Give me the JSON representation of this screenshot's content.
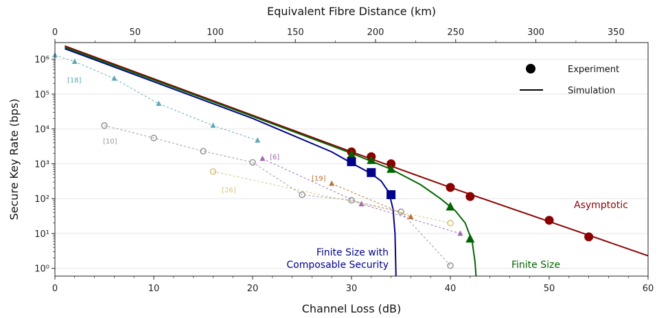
{
  "chart_data": {
    "type": "scatter",
    "xlabel": "Channel Loss (dB)",
    "ylabel": "Secure Key Rate (bps)",
    "x2label": "Equivalent Fibre Distance (km)",
    "xlim": [
      0,
      60
    ],
    "ylim": [
      0.6,
      3000000
    ],
    "x2lim": [
      0,
      370
    ],
    "yscale": "log",
    "grid": "horizontal",
    "x_ticks": [
      0,
      10,
      20,
      30,
      40,
      50,
      60
    ],
    "x2_ticks": [
      0,
      50,
      100,
      150,
      200,
      250,
      300,
      350
    ],
    "y_ticks": [
      {
        "value": 1,
        "label": "10⁰"
      },
      {
        "value": 10,
        "label": "10¹"
      },
      {
        "value": 100,
        "label": "10²"
      },
      {
        "value": 1000,
        "label": "10³"
      },
      {
        "value": 10000,
        "label": "10⁴"
      },
      {
        "value": 100000,
        "label": "10⁵"
      },
      {
        "value": 1000000,
        "label": "10⁶"
      }
    ],
    "legend": {
      "placement": "top-right",
      "entries": [
        {
          "label": "Experiment",
          "marker": "circle"
        },
        {
          "label": "Simulation",
          "marker": "line"
        }
      ]
    },
    "series": [
      {
        "name": "Asymptotic",
        "color": "#8b0000",
        "marker": "circle",
        "points": [
          [
            30,
            2200
          ],
          [
            32,
            1600
          ],
          [
            34,
            1000
          ],
          [
            40,
            210
          ],
          [
            42,
            115
          ],
          [
            50,
            24
          ],
          [
            54,
            8
          ]
        ],
        "curve": [
          [
            1,
            2400000
          ],
          [
            30,
            2200
          ],
          [
            40,
            210
          ],
          [
            50,
            22
          ],
          [
            60,
            2.3
          ]
        ]
      },
      {
        "name": "Finite Size",
        "color": "#006400",
        "marker": "triangle",
        "points": [
          [
            30,
            1800
          ],
          [
            32,
            1250
          ],
          [
            34,
            700
          ],
          [
            40,
            58
          ],
          [
            42,
            7
          ]
        ],
        "curve": [
          [
            1,
            2200000
          ],
          [
            20,
            23000
          ],
          [
            30,
            2000
          ],
          [
            34,
            700
          ],
          [
            37,
            250
          ],
          [
            39,
            100
          ],
          [
            40.5,
            45
          ],
          [
            41.5,
            20
          ],
          [
            42.2,
            6
          ],
          [
            42.5,
            1.5
          ],
          [
            42.6,
            0.6
          ]
        ]
      },
      {
        "name": "Finite Size with Composable Security",
        "color": "#00008b",
        "marker": "square",
        "points": [
          [
            30,
            1150
          ],
          [
            32,
            560
          ],
          [
            34,
            130
          ]
        ],
        "curve": [
          [
            1,
            2000000
          ],
          [
            20,
            20000
          ],
          [
            28,
            2200
          ],
          [
            30,
            1050
          ],
          [
            32,
            520
          ],
          [
            33,
            320
          ],
          [
            33.8,
            150
          ],
          [
            34.2,
            50
          ],
          [
            34.4,
            10
          ],
          [
            34.5,
            0.6
          ]
        ]
      }
    ],
    "references": [
      {
        "label": "[18]",
        "color": "#5fa8b8",
        "marker": "triangle",
        "points": [
          [
            0,
            1300000
          ],
          [
            2,
            850000
          ],
          [
            6,
            280000
          ],
          [
            10.5,
            53000
          ],
          [
            16,
            12500
          ],
          [
            20.5,
            4700
          ]
        ]
      },
      {
        "label": "[10]",
        "color": "#999999",
        "marker": "open-circle",
        "points": [
          [
            5,
            12500
          ],
          [
            10,
            5500
          ],
          [
            15,
            2300
          ],
          [
            20,
            1100
          ],
          [
            25,
            130
          ],
          [
            30,
            90
          ],
          [
            35,
            42
          ],
          [
            40,
            1.2
          ]
        ]
      },
      {
        "label": "[6]",
        "color": "#a066b0",
        "marker": "triangle",
        "points": [
          [
            21,
            1400
          ],
          [
            31,
            70
          ],
          [
            41,
            10
          ]
        ]
      },
      {
        "label": "[19]",
        "color": "#b87333",
        "marker": "triangle",
        "points": [
          [
            28,
            270
          ],
          [
            36,
            30
          ]
        ]
      },
      {
        "label": "[26]",
        "color": "#d9c47a",
        "marker": "open-circle",
        "points": [
          [
            16,
            600
          ],
          [
            40,
            20
          ]
        ]
      }
    ]
  }
}
